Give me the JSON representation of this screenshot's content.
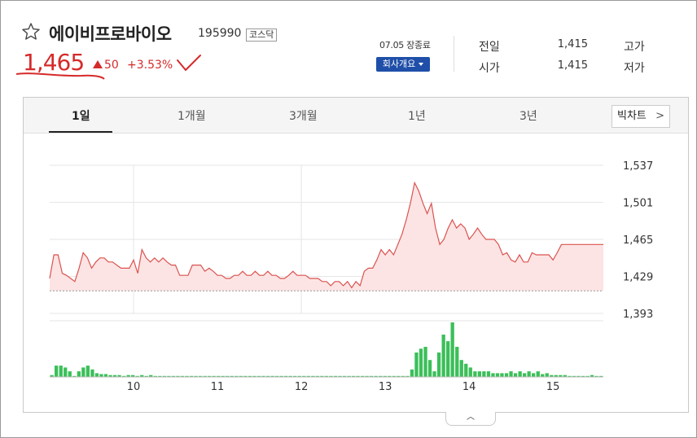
{
  "stock": {
    "name": "에이비프로바이오",
    "code": "195990",
    "market": "코스닥",
    "price": "1,465",
    "change": "50",
    "change_pct": "+3.53%",
    "market_status": "07.05 장종료",
    "company_button": "회사개요"
  },
  "quote": {
    "prev_close_label": "전일",
    "prev_close": "1,415",
    "high_label": "고가",
    "open_label": "시가",
    "open": "1,415",
    "low_label": "저가"
  },
  "tabs": [
    "1일",
    "1개월",
    "3개월",
    "1년",
    "3년"
  ],
  "active_tab": 0,
  "big_chart_label": "빅차트",
  "colors": {
    "up": "#d62a2a",
    "line": "#d9534f",
    "area": "#fde4e4",
    "volume": "#3cbf5a",
    "button": "#1f4fa8"
  },
  "chart_data": {
    "type": "line",
    "title": "",
    "xlabel": "",
    "ylabel": "",
    "y_ticks": [
      "1,537",
      "1,501",
      "1,465",
      "1,429",
      "1,393"
    ],
    "ylim": [
      1393,
      1537
    ],
    "x_ticks": [
      "10",
      "11",
      "12",
      "13",
      "14",
      "15"
    ],
    "x_tick_positions": [
      10,
      11,
      12,
      13,
      14,
      15
    ],
    "xlim": [
      9.0,
      15.6
    ],
    "baseline": 1415,
    "series": [
      {
        "values": [
          1427,
          1450,
          1450,
          1432,
          1430,
          1427,
          1424,
          1437,
          1452,
          1447,
          1437,
          1443,
          1447,
          1447,
          1443,
          1443,
          1440,
          1437,
          1437,
          1437,
          1445,
          1432,
          1455,
          1447,
          1443,
          1447,
          1443,
          1447,
          1443,
          1440,
          1440,
          1430,
          1430,
          1430,
          1440,
          1440,
          1440,
          1434,
          1437,
          1434,
          1430,
          1430,
          1427,
          1427,
          1430,
          1430,
          1434,
          1430,
          1430,
          1434,
          1430,
          1430,
          1434,
          1430,
          1430,
          1427,
          1427,
          1430,
          1434,
          1430,
          1430,
          1430,
          1427,
          1427,
          1427,
          1424,
          1424,
          1420,
          1424,
          1424,
          1420,
          1424,
          1418,
          1424,
          1420,
          1434,
          1437,
          1437,
          1445,
          1455,
          1450,
          1455,
          1450,
          1460,
          1470,
          1484,
          1500,
          1520,
          1512,
          1500,
          1490,
          1500,
          1476,
          1460,
          1465,
          1476,
          1484,
          1476,
          1480,
          1476,
          1465,
          1470,
          1476,
          1470,
          1465,
          1465,
          1465,
          1460,
          1450,
          1452,
          1445,
          1443,
          1450,
          1443,
          1443,
          1452,
          1450,
          1450,
          1450,
          1450,
          1445,
          1452,
          1460,
          1460,
          1460,
          1460,
          1460,
          1460,
          1460,
          1460,
          1460,
          1460,
          1460
        ]
      }
    ],
    "volume": [
      2,
      12,
      12,
      10,
      6,
      1,
      6,
      10,
      12,
      8,
      4,
      3,
      3,
      2,
      2,
      2,
      1,
      2,
      2,
      1,
      2,
      1,
      2,
      1,
      1,
      1,
      1,
      1,
      1,
      1,
      1,
      1,
      1,
      1,
      1,
      1,
      1,
      1,
      1,
      1,
      1,
      1,
      1,
      1,
      1,
      1,
      1,
      1,
      1,
      1,
      1,
      1,
      1,
      1,
      1,
      1,
      1,
      1,
      1,
      1,
      1,
      1,
      1,
      1,
      1,
      1,
      1,
      1,
      1,
      1,
      1,
      1,
      1,
      1,
      1,
      1,
      1,
      1,
      1,
      1,
      8,
      26,
      30,
      32,
      18,
      6,
      26,
      45,
      38,
      58,
      32,
      18,
      14,
      10,
      6,
      6,
      6,
      6,
      4,
      4,
      4,
      4,
      6,
      4,
      6,
      4,
      6,
      4,
      6,
      3,
      4,
      2,
      2,
      2,
      2,
      1,
      1,
      1,
      1,
      1,
      2,
      1,
      1
    ]
  }
}
